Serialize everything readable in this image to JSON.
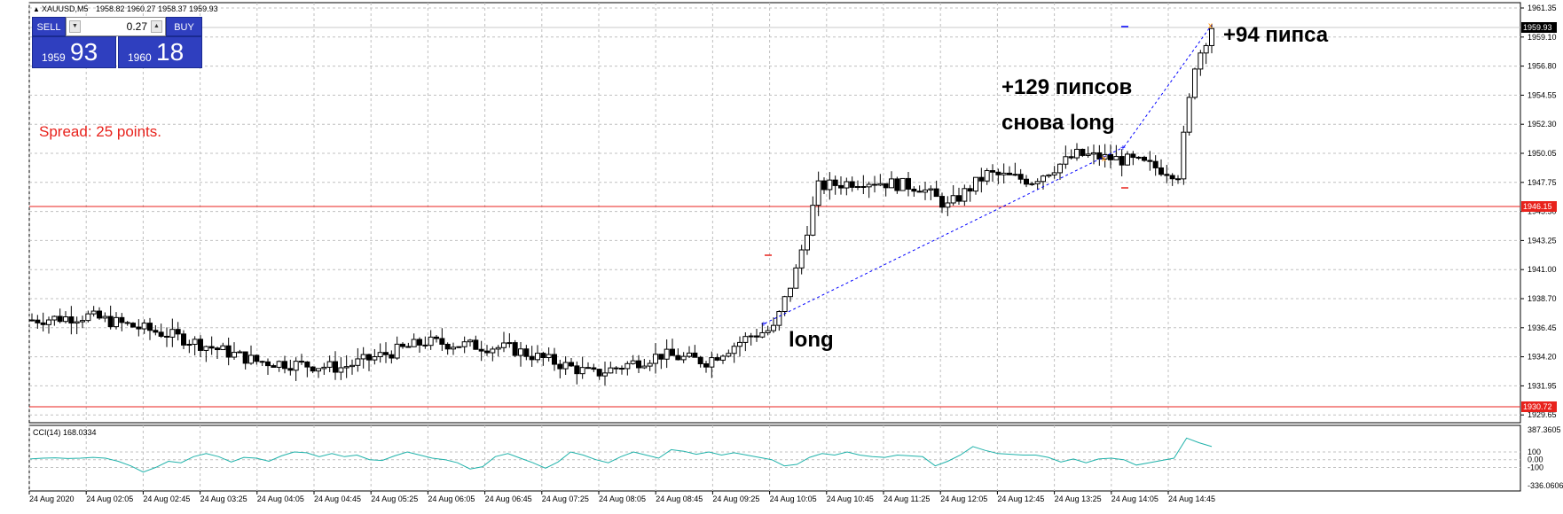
{
  "header": {
    "symbol": "XAUUSD,M5",
    "ohlc": "1958.82 1960.27 1958.37 1959.93"
  },
  "trade_panel": {
    "sell_label": "SELL",
    "buy_label": "BUY",
    "lot": "0.27",
    "bid_base": "1959",
    "bid_pips": "93",
    "ask_base": "1960",
    "ask_pips": "18"
  },
  "spread_text": "Spread: 25 points.",
  "price_axis": {
    "ticks": [
      "1961.35",
      "1959.10",
      "1956.80",
      "1954.55",
      "1952.30",
      "1950.05",
      "1947.75",
      "1945.50",
      "1943.25",
      "1941.00",
      "1938.70",
      "1936.45",
      "1934.20",
      "1931.95",
      "1929.65"
    ],
    "current_price": "1959.93",
    "level_high": "1946.15",
    "level_low": "1930.72"
  },
  "indicator": {
    "label": "CCI(14) 168.0334",
    "ticks": [
      "387.3605",
      "100",
      "0.00",
      "-100",
      "-336.0606"
    ],
    "values": [
      10,
      20,
      25,
      15,
      20,
      30,
      20,
      -20,
      -80,
      -160,
      -100,
      -20,
      -40,
      40,
      80,
      40,
      -30,
      30,
      20,
      -20,
      50,
      100,
      90,
      40,
      80,
      40,
      60,
      0,
      -10,
      50,
      100,
      60,
      20,
      0,
      -40,
      -120,
      -90,
      40,
      80,
      20,
      -40,
      -110,
      -30,
      100,
      60,
      0,
      -40,
      40,
      100,
      60,
      20,
      130,
      110,
      70,
      100,
      60,
      90,
      60,
      30,
      0,
      -80,
      -60,
      30,
      80,
      60,
      100,
      60,
      40,
      30,
      60,
      50,
      40,
      -80,
      -20,
      60,
      170,
      120,
      80,
      70,
      60,
      60,
      30,
      -30,
      10,
      -40,
      10,
      20,
      0,
      -70,
      -40,
      -10,
      20,
      280,
      220,
      170
    ]
  },
  "time_axis": {
    "labels": [
      "24 Aug 2020",
      "24 Aug 02:05",
      "24 Aug 02:45",
      "24 Aug 03:25",
      "24 Aug 04:05",
      "24 Aug 04:45",
      "24 Aug 05:25",
      "24 Aug 06:05",
      "24 Aug 06:45",
      "24 Aug 07:25",
      "24 Aug 08:05",
      "24 Aug 08:45",
      "24 Aug 09:25",
      "24 Aug 10:05",
      "24 Aug 10:45",
      "24 Aug 11:25",
      "24 Aug 12:05",
      "24 Aug 12:45",
      "24 Aug 13:25",
      "24 Aug 14:05",
      "24 Aug 14:45"
    ]
  },
  "annotations": {
    "long": "long",
    "pips_129": "+129 пипсов",
    "again_long": "снова long",
    "pips_94": "+94 пипса"
  },
  "colors": {
    "bull": "#ffffff",
    "bear": "#000000",
    "level_line": "#e8221c",
    "grid": "#c0c0c0",
    "cci_line": "#20b2aa",
    "trade_line": "#0000ff",
    "panel_blue": "#2f3fbf",
    "current_price_bg": "#000000",
    "level_label_bg": "#e8221c"
  },
  "icons": {
    "header_arrow": "triangle-up-icon",
    "lot_down": "triangle-down-icon",
    "lot_up": "triangle-up-icon"
  }
}
